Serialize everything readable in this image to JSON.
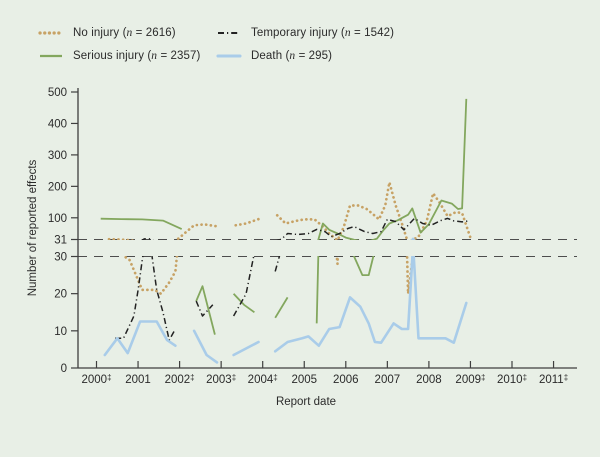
{
  "figure": {
    "background": "#e8efe6"
  },
  "colors": {
    "no_injury": "#c7a265",
    "serious_injury": "#83a75e",
    "temporary_injury": "#222222",
    "death": "#a9cce9",
    "axis": "#3f3f3f",
    "break_line": "#4d4d4d",
    "text": "#2b2b2b"
  },
  "legend": {
    "items": [
      {
        "id": "no-injury",
        "name": "No injury",
        "n": 2616,
        "pre": "No injury (",
        "nvar": "n",
        "post": " = 2616)",
        "color": "#c7a265",
        "style": "dotted"
      },
      {
        "id": "temporary-injury",
        "name": "Temporary injury",
        "n": 1542,
        "pre": "Temporary injury (",
        "nvar": "n",
        "post": " = 1542)",
        "color": "#222222",
        "style": "dashdot"
      },
      {
        "id": "serious-injury",
        "name": "Serious injury",
        "n": 2357,
        "pre": "Serious injury (",
        "nvar": "n",
        "post": " = 2357)",
        "color": "#83a75e",
        "style": "solid"
      },
      {
        "id": "death",
        "name": "Death",
        "n": 295,
        "pre": "Death (",
        "nvar": "n",
        "post": " = 295)",
        "color": "#a9cce9",
        "style": "solid-thick"
      }
    ]
  },
  "chart_data": {
    "type": "line",
    "title": "",
    "xlabel": "Report date",
    "ylabel": "Number of reported effects",
    "grid": "two dashed horizontal break lines only",
    "legend_position": "top-left, two columns",
    "x_axis": {
      "ticks": [
        {
          "label": "2000",
          "dagger": true
        },
        {
          "label": "2001",
          "dagger": false
        },
        {
          "label": "2002",
          "dagger": true
        },
        {
          "label": "2003",
          "dagger": true
        },
        {
          "label": "2004",
          "dagger": true
        },
        {
          "label": "2005",
          "dagger": false
        },
        {
          "label": "2006",
          "dagger": false
        },
        {
          "label": "2007",
          "dagger": false
        },
        {
          "label": "2008",
          "dagger": false
        },
        {
          "label": "2009",
          "dagger": true
        },
        {
          "label": "2010",
          "dagger": true
        },
        {
          "label": "2011",
          "dagger": true
        }
      ],
      "dagger_symbol": "‡",
      "range": [
        2000,
        2011
      ]
    },
    "y_axis": {
      "broken": true,
      "upper": {
        "min": 31,
        "max": 500,
        "ticks": [
          31,
          100,
          200,
          300,
          400,
          500
        ]
      },
      "lower": {
        "min": 0,
        "max": 30,
        "ticks": [
          0,
          10,
          20,
          30
        ]
      }
    },
    "series": [
      {
        "name": "No injury",
        "n": 2616,
        "color": "#c7a265",
        "style": "dotted",
        "points": [
          [
            2000.3,
            32
          ],
          [
            2000.55,
            31
          ],
          [
            2000.8,
            29
          ],
          [
            2000.95,
            25
          ],
          [
            2001.1,
            21
          ],
          [
            2001.4,
            21
          ],
          [
            2001.55,
            20
          ],
          [
            2001.75,
            23
          ],
          [
            2001.9,
            26
          ],
          [
            2002.35,
            76
          ],
          [
            2002.6,
            79
          ],
          [
            2002.9,
            73
          ],
          null,
          [
            2003.35,
            76
          ],
          [
            2003.6,
            82
          ],
          [
            2003.95,
            98
          ],
          null,
          [
            2004.35,
            108
          ],
          [
            2004.55,
            82
          ],
          [
            2004.8,
            90
          ],
          [
            2005.0,
            95
          ],
          [
            2005.25,
            95
          ],
          [
            2005.45,
            72
          ],
          [
            2005.6,
            50
          ],
          [
            2005.8,
            28
          ],
          [
            2005.95,
            70
          ],
          [
            2006.1,
            139
          ],
          [
            2006.3,
            139
          ],
          [
            2006.5,
            128
          ],
          [
            2006.65,
            112
          ],
          [
            2006.8,
            95
          ],
          [
            2006.95,
            140
          ],
          [
            2007.05,
            213
          ],
          [
            2007.2,
            139
          ],
          [
            2007.35,
            82
          ],
          [
            2007.5,
            20
          ],
          [
            2007.6,
            29
          ],
          [
            2007.75,
            40
          ],
          [
            2007.95,
            90
          ],
          [
            2008.1,
            178
          ],
          [
            2008.25,
            150
          ],
          [
            2008.45,
            105
          ],
          [
            2008.65,
            118
          ],
          [
            2008.8,
            115
          ],
          [
            2009.0,
            37
          ]
        ]
      },
      {
        "name": "Serious injury",
        "n": 2357,
        "color": "#83a75e",
        "style": "solid",
        "points": [
          [
            2000.1,
            97
          ],
          [
            2000.6,
            96
          ],
          [
            2001.1,
            95
          ],
          [
            2001.6,
            91
          ],
          [
            2002.05,
            64
          ],
          null,
          [
            2002.4,
            18
          ],
          [
            2002.55,
            22
          ],
          [
            2002.85,
            9
          ],
          null,
          [
            2003.3,
            20
          ],
          [
            2003.55,
            17
          ],
          [
            2003.8,
            15
          ],
          null,
          [
            2004.3,
            13.5
          ],
          [
            2004.6,
            19
          ],
          null,
          [
            2005.3,
            12
          ],
          [
            2005.45,
            82
          ],
          [
            2005.6,
            62
          ],
          [
            2005.8,
            50
          ],
          [
            2006.0,
            37
          ],
          [
            2006.2,
            30
          ],
          [
            2006.4,
            25
          ],
          [
            2006.55,
            25
          ],
          [
            2006.75,
            34
          ],
          [
            2006.9,
            60
          ],
          [
            2007.05,
            82
          ],
          [
            2007.25,
            92
          ],
          [
            2007.5,
            110
          ],
          [
            2007.6,
            130
          ],
          [
            2007.8,
            53
          ],
          [
            2008.0,
            80
          ],
          [
            2008.3,
            155
          ],
          [
            2008.55,
            145
          ],
          [
            2008.7,
            128
          ],
          [
            2008.8,
            130
          ],
          [
            2008.9,
            478
          ]
        ]
      },
      {
        "name": "Temporary injury",
        "n": 1542,
        "color": "#222222",
        "style": "dashdot",
        "points": [
          [
            2000.45,
            8
          ],
          [
            2000.65,
            8
          ],
          [
            2000.9,
            14
          ],
          [
            2001.0,
            21
          ],
          [
            2001.15,
            33
          ],
          [
            2001.3,
            33
          ],
          [
            2001.45,
            21
          ],
          [
            2001.6,
            15
          ],
          [
            2001.75,
            7.5
          ],
          [
            2001.9,
            10.5
          ],
          null,
          [
            2002.4,
            18
          ],
          [
            2002.55,
            14
          ],
          [
            2002.8,
            17
          ],
          null,
          [
            2003.3,
            14
          ],
          [
            2003.6,
            20
          ],
          [
            2003.8,
            31
          ],
          null,
          [
            2004.3,
            26
          ],
          [
            2004.45,
            32
          ],
          [
            2004.6,
            50
          ],
          [
            2004.85,
            47
          ],
          [
            2005.1,
            50
          ],
          [
            2005.3,
            63
          ],
          [
            2005.5,
            56
          ],
          [
            2005.65,
            40
          ],
          [
            2005.85,
            50
          ],
          [
            2006.05,
            66
          ],
          [
            2006.2,
            72
          ],
          [
            2006.45,
            56
          ],
          [
            2006.65,
            50
          ],
          [
            2006.85,
            56
          ],
          [
            2007.0,
            95
          ],
          [
            2007.2,
            88
          ],
          [
            2007.4,
            62
          ],
          [
            2007.65,
            98
          ],
          [
            2007.85,
            82
          ],
          [
            2008.05,
            76
          ],
          [
            2008.3,
            92
          ],
          [
            2008.45,
            98
          ],
          [
            2008.6,
            90
          ],
          [
            2008.8,
            87
          ],
          [
            2008.95,
            90
          ]
        ]
      },
      {
        "name": "Death",
        "n": 295,
        "color": "#a9cce9",
        "style": "solid-thick",
        "points": [
          [
            2000.2,
            3.5
          ],
          [
            2000.5,
            8
          ],
          [
            2000.75,
            4
          ],
          [
            2001.05,
            12.5
          ],
          [
            2001.45,
            12.5
          ],
          [
            2001.7,
            7.5
          ],
          [
            2001.9,
            6
          ],
          null,
          [
            2002.35,
            10
          ],
          [
            2002.65,
            3.5
          ],
          [
            2002.9,
            1.5
          ],
          null,
          [
            2003.3,
            3.5
          ],
          [
            2003.9,
            7
          ],
          null,
          [
            2004.3,
            4.5
          ],
          [
            2004.6,
            7
          ],
          [
            2004.95,
            8
          ],
          [
            2005.1,
            8.5
          ],
          [
            2005.35,
            6
          ],
          [
            2005.6,
            10.5
          ],
          [
            2005.85,
            11
          ],
          [
            2006.1,
            19
          ],
          [
            2006.35,
            16.5
          ],
          [
            2006.55,
            12
          ],
          [
            2006.7,
            7
          ],
          [
            2006.85,
            6.8
          ],
          [
            2007.15,
            12
          ],
          [
            2007.35,
            10.5
          ],
          [
            2007.5,
            10.5
          ],
          [
            2007.62,
            33
          ],
          [
            2007.75,
            8
          ],
          [
            2008.0,
            8
          ],
          [
            2008.4,
            8
          ],
          [
            2008.6,
            6.8
          ],
          [
            2008.9,
            17.5
          ]
        ]
      }
    ]
  }
}
